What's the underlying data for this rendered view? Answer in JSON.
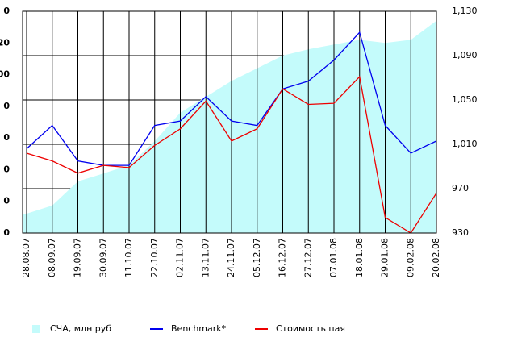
{
  "chart_data": {
    "type": "area-line",
    "categories": [
      "28.08.07",
      "08.09.07",
      "19.09.07",
      "30.09.07",
      "11.10.07",
      "22.10.07",
      "02.11.07",
      "13.11.07",
      "24.11.07",
      "05.12.07",
      "16.12.07",
      "27.12.07",
      "07.01.08",
      "18.01.08",
      "29.01.08",
      "09.02.08",
      "20.02.08"
    ],
    "series": [
      {
        "name": "СЧА, млн руб",
        "color": "#c4fbfb",
        "axis": "y",
        "values": [
          0.61,
          0.87,
          1.63,
          1.88,
          2.14,
          2.9,
          3.8,
          4.3,
          4.8,
          5.2,
          5.6,
          5.8,
          5.95,
          6.1,
          6.0,
          6.1,
          6.7
        ]
      },
      {
        "name": "Benchmark*",
        "color": "#0000ee",
        "axis": "y2",
        "values": [
          1006,
          1027,
          995,
          991,
          991,
          1027,
          1031,
          1053,
          1031,
          1027,
          1060,
          1067,
          1086,
          1111,
          1027,
          1002,
          1013
        ]
      },
      {
        "name": "Стоимость пая",
        "color": "#ee0000",
        "axis": "y2",
        "values": [
          1002,
          995,
          984,
          991,
          989,
          1009,
          1024,
          1049,
          1013,
          1024,
          1060,
          1046,
          1047,
          1071,
          944,
          930,
          966
        ]
      }
    ],
    "ylim": [
      0,
      7
    ],
    "yticks": [
      {
        "value": 0,
        "label": "0"
      },
      {
        "value": 1,
        "label": "0"
      },
      {
        "value": 2,
        "label": "0"
      },
      {
        "value": 3,
        "label": "0"
      },
      {
        "value": 4,
        "label": "0"
      },
      {
        "value": 5,
        "label": "00"
      },
      {
        "value": 6,
        "label": "20"
      },
      {
        "value": 7,
        "label": "0"
      }
    ],
    "y2lim": [
      930,
      1130
    ],
    "y2ticks": [
      930,
      970,
      {
        "value": 1010,
        "label": "1,010"
      },
      {
        "value": 1050,
        "label": "1,050"
      },
      {
        "value": 1090,
        "label": "1,090"
      },
      {
        "value": 1130,
        "label": "1,130"
      }
    ],
    "grid": true
  }
}
